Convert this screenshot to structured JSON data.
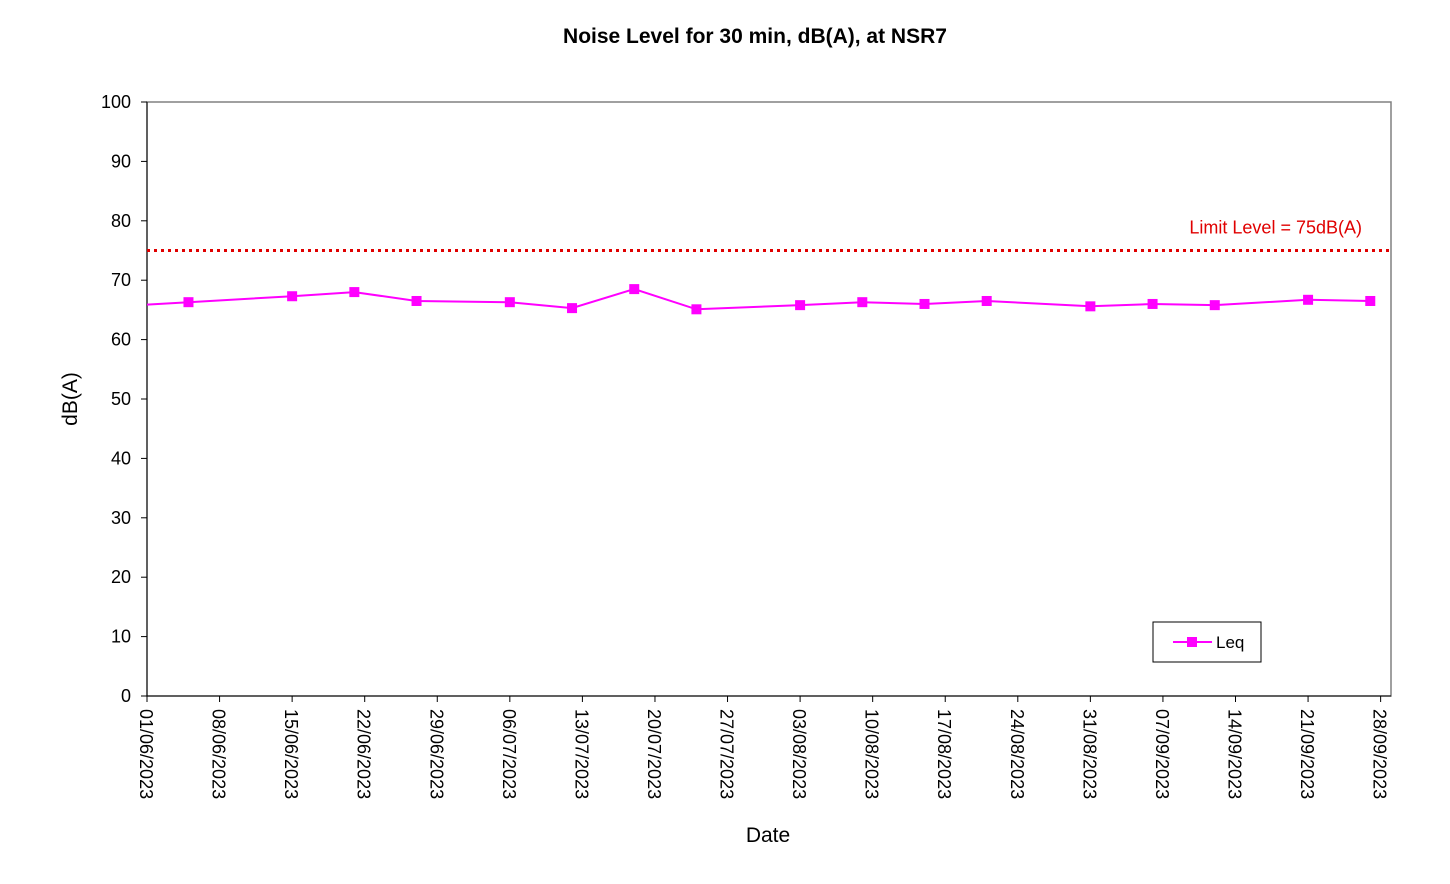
{
  "chart_data": {
    "type": "line",
    "title": "Noise Level for 30 min, dB(A), at NSR7",
    "xlabel": "Date",
    "ylabel": "dB(A)",
    "ylim": [
      0,
      100
    ],
    "yticks": [
      0,
      10,
      20,
      30,
      40,
      50,
      60,
      70,
      80,
      90,
      100
    ],
    "xlim": [
      "2023-06-01",
      "2023-09-29"
    ],
    "xticks": [
      "01/06/2023",
      "08/06/2023",
      "15/06/2023",
      "22/06/2023",
      "29/06/2023",
      "06/07/2023",
      "13/07/2023",
      "20/07/2023",
      "27/07/2023",
      "03/08/2023",
      "10/08/2023",
      "17/08/2023",
      "24/08/2023",
      "31/08/2023",
      "07/09/2023",
      "14/09/2023",
      "21/09/2023",
      "28/09/2023"
    ],
    "grid": false,
    "legend_position": "bottom-right",
    "series": [
      {
        "name": "Leq",
        "color": "#ff00ff",
        "marker": "square",
        "x": [
          "2023-06-05",
          "2023-06-15",
          "2023-06-21",
          "2023-06-27",
          "2023-07-06",
          "2023-07-12",
          "2023-07-18",
          "2023-07-24",
          "2023-08-03",
          "2023-08-09",
          "2023-08-15",
          "2023-08-21",
          "2023-08-31",
          "2023-09-06",
          "2023-09-12",
          "2023-09-21",
          "2023-09-27"
        ],
        "values": [
          66.3,
          67.3,
          68.0,
          66.5,
          66.3,
          65.3,
          68.5,
          65.1,
          65.8,
          66.3,
          66.0,
          66.5,
          65.6,
          66.0,
          65.8,
          66.7,
          66.5
        ],
        "line_start_value": 65.9
      }
    ],
    "reference_line": {
      "value": 75,
      "label": "Limit Level = 75dB(A)",
      "color": "#e00000",
      "style": "dotted"
    }
  }
}
